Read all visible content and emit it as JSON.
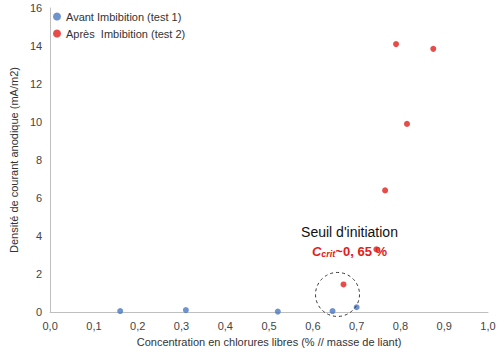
{
  "chart_data": {
    "type": "scatter",
    "x_label": "Concentration en chlorures libres (% // masse de liant)",
    "y_label": "Densité de courant anodique (mA/m2)",
    "series": [
      {
        "name": "Avant Imbibition (test 1)",
        "color": "#4a78c2",
        "marker": "circle",
        "x": [
          0.16,
          0.31,
          0.52,
          0.645,
          0.7
        ],
        "values": [
          0.05,
          0.1,
          0.02,
          0.05,
          0.25
        ]
      },
      {
        "name": "Après  Imbibition (test 2)",
        "color": "#e0201a",
        "marker": "circle",
        "x": [
          0.67,
          0.745,
          0.765,
          0.815,
          0.79,
          0.875
        ],
        "values": [
          1.45,
          3.3,
          6.4,
          9.9,
          14.1,
          13.85
        ]
      }
    ],
    "xlim": [
      0,
      1
    ],
    "xticks": [
      {
        "value": 0,
        "label": "0,0"
      },
      {
        "value": 0.1,
        "label": "0,1"
      },
      {
        "value": 0.2,
        "label": "0,2"
      },
      {
        "value": 0.3,
        "label": "0,3"
      },
      {
        "value": 0.4,
        "label": "0,4"
      },
      {
        "value": 0.5,
        "label": "0,5"
      },
      {
        "value": 0.6,
        "label": "0,6"
      },
      {
        "value": 0.7,
        "label": "0,7"
      },
      {
        "value": 0.8,
        "label": "0,8"
      },
      {
        "value": 0.9,
        "label": "0,9"
      },
      {
        "value": 1,
        "label": "1,0"
      }
    ],
    "ylim": [
      0,
      16
    ],
    "yticks": [
      0,
      2,
      4,
      6,
      8,
      10,
      12,
      14,
      16
    ],
    "grid": false,
    "legend": "top-left",
    "annotation": {
      "text": "Seuil d'initiation",
      "symbol": "C",
      "subscript": "crit",
      "value_text": "~0, 65 %",
      "color": "#e0201a"
    }
  }
}
